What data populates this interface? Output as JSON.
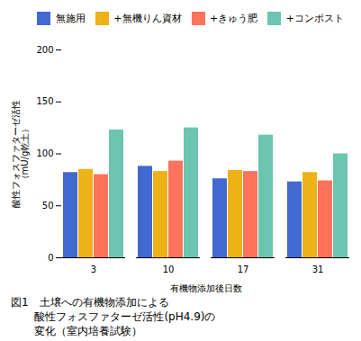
{
  "chart_data": {
    "type": "bar",
    "categories": [
      3,
      10,
      17,
      31
    ],
    "series": [
      {
        "name": "無施用",
        "values": [
          82,
          88,
          76,
          73
        ]
      },
      {
        "name": "+無機りん資材",
        "values": [
          85,
          83,
          84,
          82
        ]
      },
      {
        "name": "+きゅう肥",
        "values": [
          80,
          93,
          83,
          74
        ]
      },
      {
        "name": "+コンポスト",
        "values": [
          123,
          125,
          118,
          100
        ]
      }
    ],
    "xlabel": "有機物添加後日数",
    "ylabel": "酸性フォスファターゼ活性\n（mU/g乾土）",
    "ylim": [
      0,
      200
    ],
    "yticks": [
      0,
      50,
      100,
      150,
      200
    ],
    "grid": false,
    "legend": "upper right",
    "caption": [
      "図1　土壌への有機物添加による",
      "酸性フォスファターゼ活性(pH4.9)の",
      "変化（室内培養試験）"
    ]
  }
}
